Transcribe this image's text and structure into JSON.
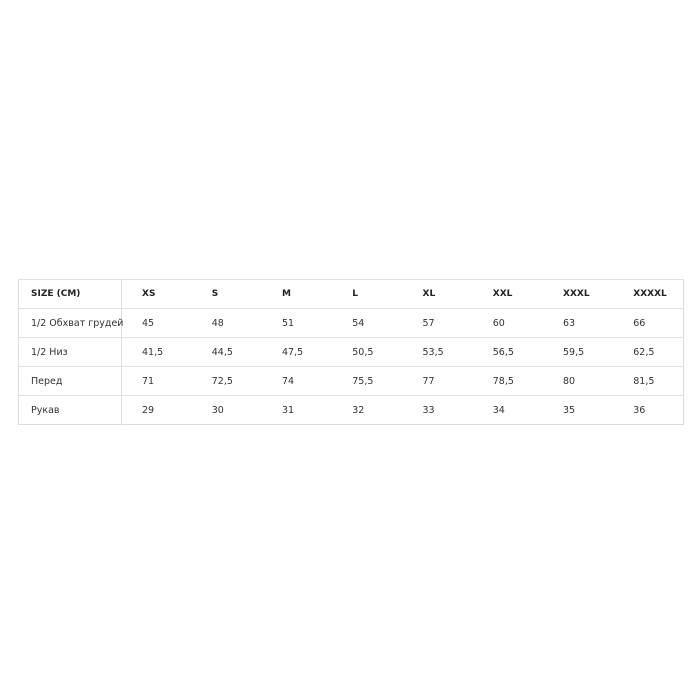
{
  "table": {
    "header": [
      "SIZE (CM)",
      "XS",
      "S",
      "M",
      "L",
      "XL",
      "XXL",
      "XXXL",
      "XXXXL"
    ],
    "rows": [
      [
        "1/2 Обхват грудей",
        "45",
        "48",
        "51",
        "54",
        "57",
        "60",
        "63",
        "66"
      ],
      [
        "1/2 Низ",
        "41,5",
        "44,5",
        "47,5",
        "50,5",
        "53,5",
        "56,5",
        "59,5",
        "62,5"
      ],
      [
        "Перед",
        "71",
        "72,5",
        "74",
        "75,5",
        "77",
        "78,5",
        "80",
        "81,5"
      ],
      [
        "Рукав",
        "29",
        "30",
        "31",
        "32",
        "33",
        "34",
        "35",
        "36"
      ]
    ]
  }
}
